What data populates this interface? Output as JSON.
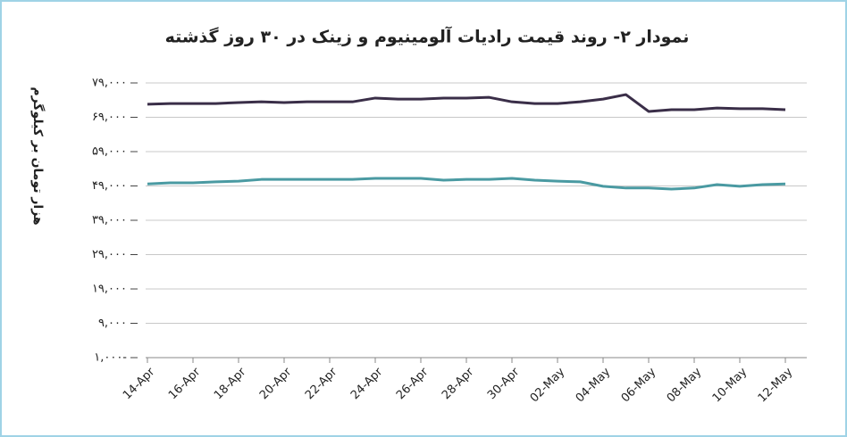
{
  "chart_data": {
    "type": "line",
    "title": "نمودار ۲- روند قیمت رادیات آلومینیوم و زینک در ۳۰ روز گذشته",
    "y_label": "هزار تومان بر کیلوگرم",
    "categories": [
      "14-Apr",
      null,
      "16-Apr",
      null,
      "18-Apr",
      null,
      "20-Apr",
      null,
      "22-Apr",
      null,
      "24-Apr",
      null,
      "26-Apr",
      null,
      "28-Apr",
      null,
      "30-Apr",
      null,
      "02-May",
      null,
      "04-May",
      null,
      "06-May",
      null,
      "08-May",
      null,
      "10-May",
      null,
      "12-May"
    ],
    "series": [
      {
        "color": "#3a2e48",
        "values": [
          72800,
          73000,
          73000,
          73000,
          73300,
          73500,
          73300,
          73500,
          73500,
          73500,
          74600,
          74300,
          74300,
          74600,
          74600,
          74800,
          73500,
          73000,
          73000,
          73500,
          74300,
          75600,
          70700,
          71200,
          71200,
          71700,
          71500,
          71500,
          71200
        ]
      },
      {
        "color": "#4a9aa2",
        "values": [
          49600,
          49900,
          49900,
          50200,
          50400,
          50900,
          50900,
          50900,
          50900,
          50900,
          51200,
          51200,
          51200,
          50700,
          50900,
          50900,
          51200,
          50700,
          50400,
          50200,
          48900,
          48400,
          48400,
          48100,
          48400,
          49400,
          48900,
          49400,
          49600
        ]
      }
    ],
    "ylim": [
      -1000,
      79000
    ],
    "yticks": [
      {
        "value": -1000,
        "label": "۱,۰۰۰-"
      },
      {
        "value": 9000,
        "label": "۹,۰۰۰"
      },
      {
        "value": 19000,
        "label": "۱۹,۰۰۰"
      },
      {
        "value": 29000,
        "label": "۲۹,۰۰۰"
      },
      {
        "value": 39000,
        "label": "۳۹,۰۰۰"
      },
      {
        "value": 49000,
        "label": "۴۹,۰۰۰"
      },
      {
        "value": 59000,
        "label": "۵۹,۰۰۰"
      },
      {
        "value": 69000,
        "label": "۶۹,۰۰۰"
      },
      {
        "value": 79000,
        "label": "۷۹,۰۰۰"
      }
    ],
    "grid": true
  }
}
